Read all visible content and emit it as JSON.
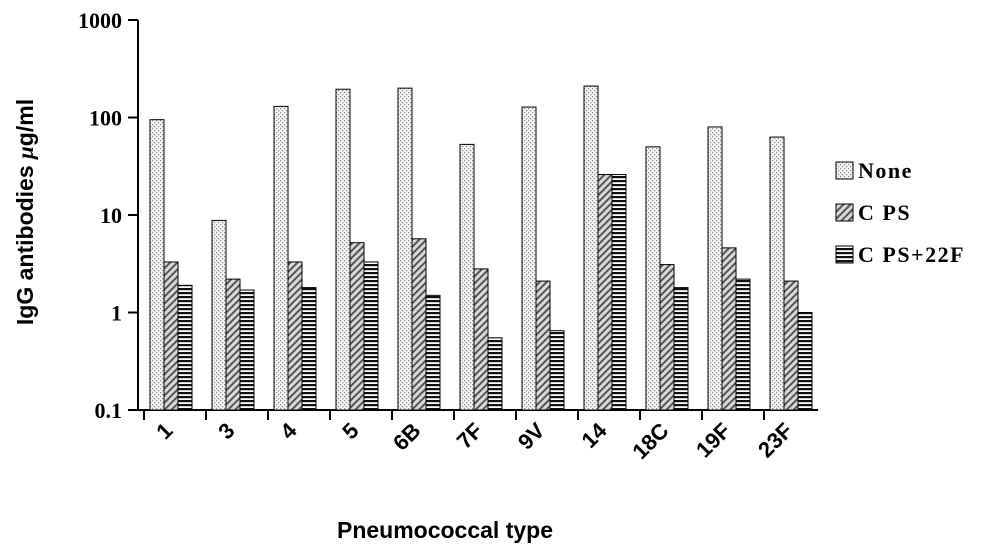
{
  "chart_data": {
    "type": "bar",
    "title": "",
    "xlabel": "Pneumococcal type",
    "ylabel_main": "IgG antibodies ",
    "ylabel_mu": "μ",
    "ylabel_unit": "g/ml",
    "yscale": "log",
    "ylim": [
      0.1,
      1000
    ],
    "yticks": [
      "0.1",
      "1",
      "10",
      "100",
      "1000"
    ],
    "grid": false,
    "legend_position": "right",
    "categories": [
      "1",
      "3",
      "4",
      "5",
      "6B",
      "7F",
      "9V",
      "14",
      "18C",
      "19F",
      "23F"
    ],
    "series": [
      {
        "name": "None",
        "values": [
          95,
          8.8,
          130,
          195,
          200,
          53,
          128,
          210,
          50,
          80,
          63
        ],
        "pattern": "dots",
        "color": "#f2f2f2"
      },
      {
        "name": "C PS",
        "values": [
          3.3,
          2.2,
          3.3,
          5.2,
          5.7,
          2.8,
          2.1,
          26,
          3.1,
          4.6,
          2.1
        ],
        "pattern": "diagonal",
        "color": "#9a9a9a"
      },
      {
        "name": "C PS+22F",
        "values": [
          1.9,
          1.7,
          1.8,
          3.3,
          1.5,
          0.55,
          0.65,
          26,
          1.8,
          2.2,
          1.0
        ],
        "pattern": "horizontal",
        "color": "#222222"
      }
    ]
  }
}
